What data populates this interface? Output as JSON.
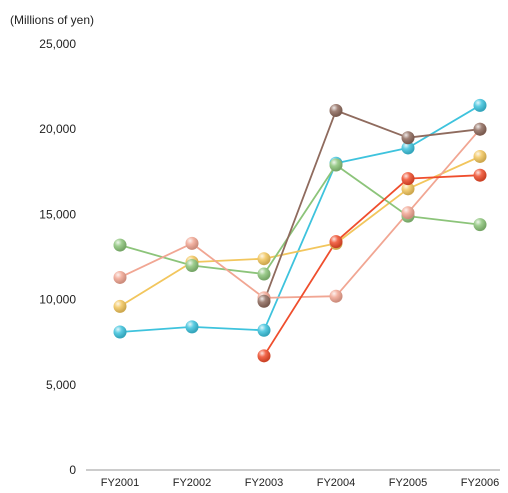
{
  "chart_data": {
    "type": "line",
    "unit_label": "(Millions of yen)",
    "categories": [
      "FY2001",
      "FY2002",
      "FY2003",
      "FY2004",
      "FY2005",
      "FY2006"
    ],
    "y_ticks": [
      "0",
      "5,000",
      "10,000",
      "15,000",
      "20,000",
      "25,000"
    ],
    "ylim": [
      0,
      25000
    ],
    "grid": false,
    "legend": "none",
    "series": [
      {
        "color": "#3ec3dd",
        "values": [
          8100,
          8400,
          8200,
          18000,
          18900,
          21400
        ]
      },
      {
        "color": "#f2c65d",
        "values": [
          9600,
          12200,
          12400,
          13300,
          16500,
          18400
        ]
      },
      {
        "color": "#8cc47a",
        "values": [
          13200,
          12000,
          11500,
          17900,
          14900,
          14400
        ]
      },
      {
        "color": "#f1a693",
        "values": [
          11300,
          13300,
          10100,
          10200,
          15100,
          20000
        ]
      },
      {
        "color": "#ef4e2d",
        "values": [
          null,
          null,
          6700,
          13400,
          17100,
          17300
        ]
      },
      {
        "color": "#8f6b5e",
        "values": [
          null,
          null,
          9900,
          21100,
          19500,
          20000
        ]
      }
    ]
  }
}
